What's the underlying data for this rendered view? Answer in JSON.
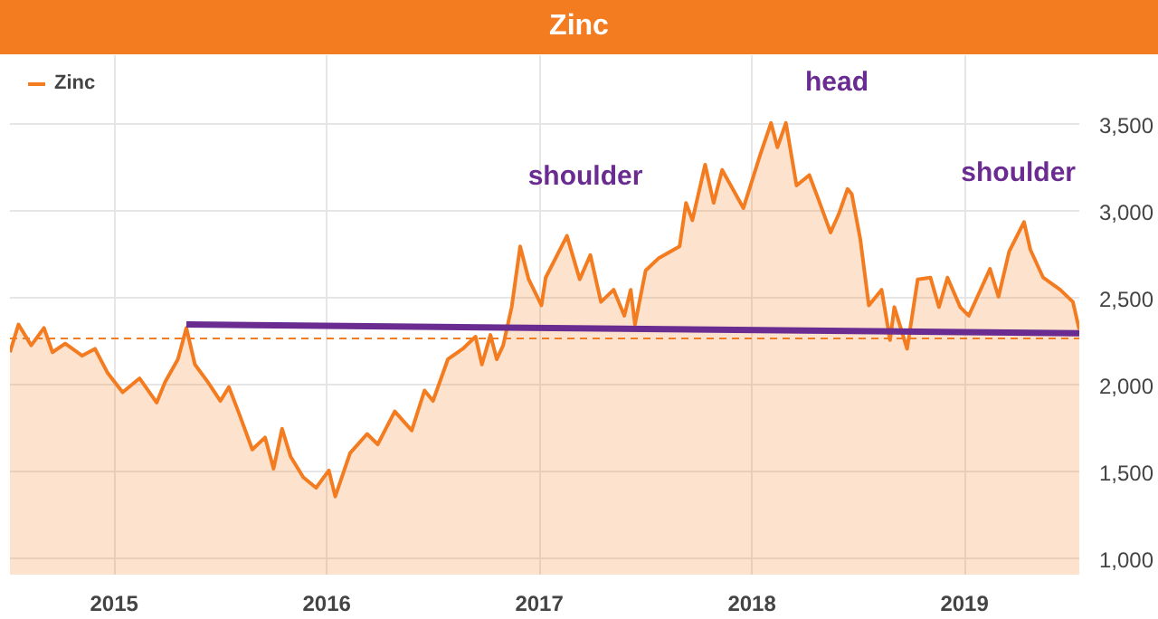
{
  "chart_data": {
    "type": "area",
    "title": "Zinc",
    "legend": "top left",
    "grid": true,
    "x": [
      2014.51,
      2014.55,
      2014.61,
      2014.67,
      2014.71,
      2014.77,
      2014.85,
      2014.91,
      2014.97,
      2015.04,
      2015.12,
      2015.2,
      2015.24,
      2015.3,
      2015.34,
      2015.38,
      2015.44,
      2015.5,
      2015.54,
      2015.59,
      2015.65,
      2015.71,
      2015.75,
      2015.79,
      2015.83,
      2015.89,
      2015.95,
      2016.01,
      2016.04,
      2016.11,
      2016.19,
      2016.24,
      2016.32,
      2016.4,
      2016.46,
      2016.5,
      2016.57,
      2016.64,
      2016.7,
      2016.73,
      2016.77,
      2016.8,
      2016.83,
      2016.87,
      2016.91,
      2016.95,
      2017.01,
      2017.03,
      2017.13,
      2017.19,
      2017.24,
      2017.29,
      2017.35,
      2017.4,
      2017.43,
      2017.45,
      2017.5,
      2017.56,
      2017.66,
      2017.69,
      2017.72,
      2017.78,
      2017.82,
      2017.86,
      2017.96,
      2018.04,
      2018.09,
      2018.12,
      2018.16,
      2018.21,
      2018.27,
      2018.31,
      2018.37,
      2018.41,
      2018.45,
      2018.47,
      2018.51,
      2018.55,
      2018.61,
      2018.65,
      2018.67,
      2018.73,
      2018.78,
      2018.84,
      2018.88,
      2018.92,
      2018.98,
      2019.02,
      2019.12,
      2019.16,
      2019.21,
      2019.28,
      2019.31,
      2019.37,
      2019.45,
      2019.51,
      2019.54
    ],
    "series": [
      {
        "name": "Zinc",
        "color": "#f47c20",
        "values": [
          2190,
          2350,
          2230,
          2330,
          2190,
          2240,
          2170,
          2210,
          2070,
          1960,
          2040,
          1900,
          2020,
          2150,
          2330,
          2120,
          2020,
          1910,
          1990,
          1830,
          1630,
          1700,
          1520,
          1750,
          1590,
          1470,
          1410,
          1510,
          1360,
          1610,
          1720,
          1660,
          1850,
          1740,
          1970,
          1910,
          2150,
          2210,
          2280,
          2120,
          2290,
          2150,
          2230,
          2450,
          2800,
          2610,
          2460,
          2620,
          2860,
          2610,
          2750,
          2480,
          2550,
          2400,
          2550,
          2350,
          2660,
          2730,
          2800,
          3050,
          2950,
          3270,
          3050,
          3240,
          3020,
          3330,
          3510,
          3370,
          3510,
          3150,
          3210,
          3080,
          2880,
          2990,
          3130,
          3100,
          2840,
          2460,
          2550,
          2260,
          2450,
          2210,
          2610,
          2620,
          2450,
          2620,
          2450,
          2400,
          2670,
          2510,
          2770,
          2940,
          2780,
          2620,
          2550,
          2480,
          2320
        ]
      },
      {
        "type": "line",
        "color": "#6a2c91",
        "x": [
          2015.34,
          2019.54
        ],
        "values": [
          2350,
          2300
        ]
      }
    ],
    "ref_lines": [
      {
        "axis": "y",
        "value": 2270,
        "color": "#f47c20",
        "line_style": "dashed"
      }
    ],
    "annotations": [
      "shoulder",
      "head",
      "shoulder"
    ],
    "xlim": [
      2014.51,
      2019.54
    ],
    "xticks": [
      2015,
      2016,
      2017,
      2018,
      2019
    ],
    "ylim": [
      910,
      3900
    ],
    "yticks": [
      {
        "value": 1000,
        "label": "1,000"
      },
      {
        "value": 1500,
        "label": "1,500"
      },
      {
        "value": 2000,
        "label": "2,000"
      },
      {
        "value": 2500,
        "label": "2,500"
      },
      {
        "value": 3000,
        "label": "3,000"
      },
      {
        "value": 3500,
        "label": "3,500"
      }
    ]
  }
}
